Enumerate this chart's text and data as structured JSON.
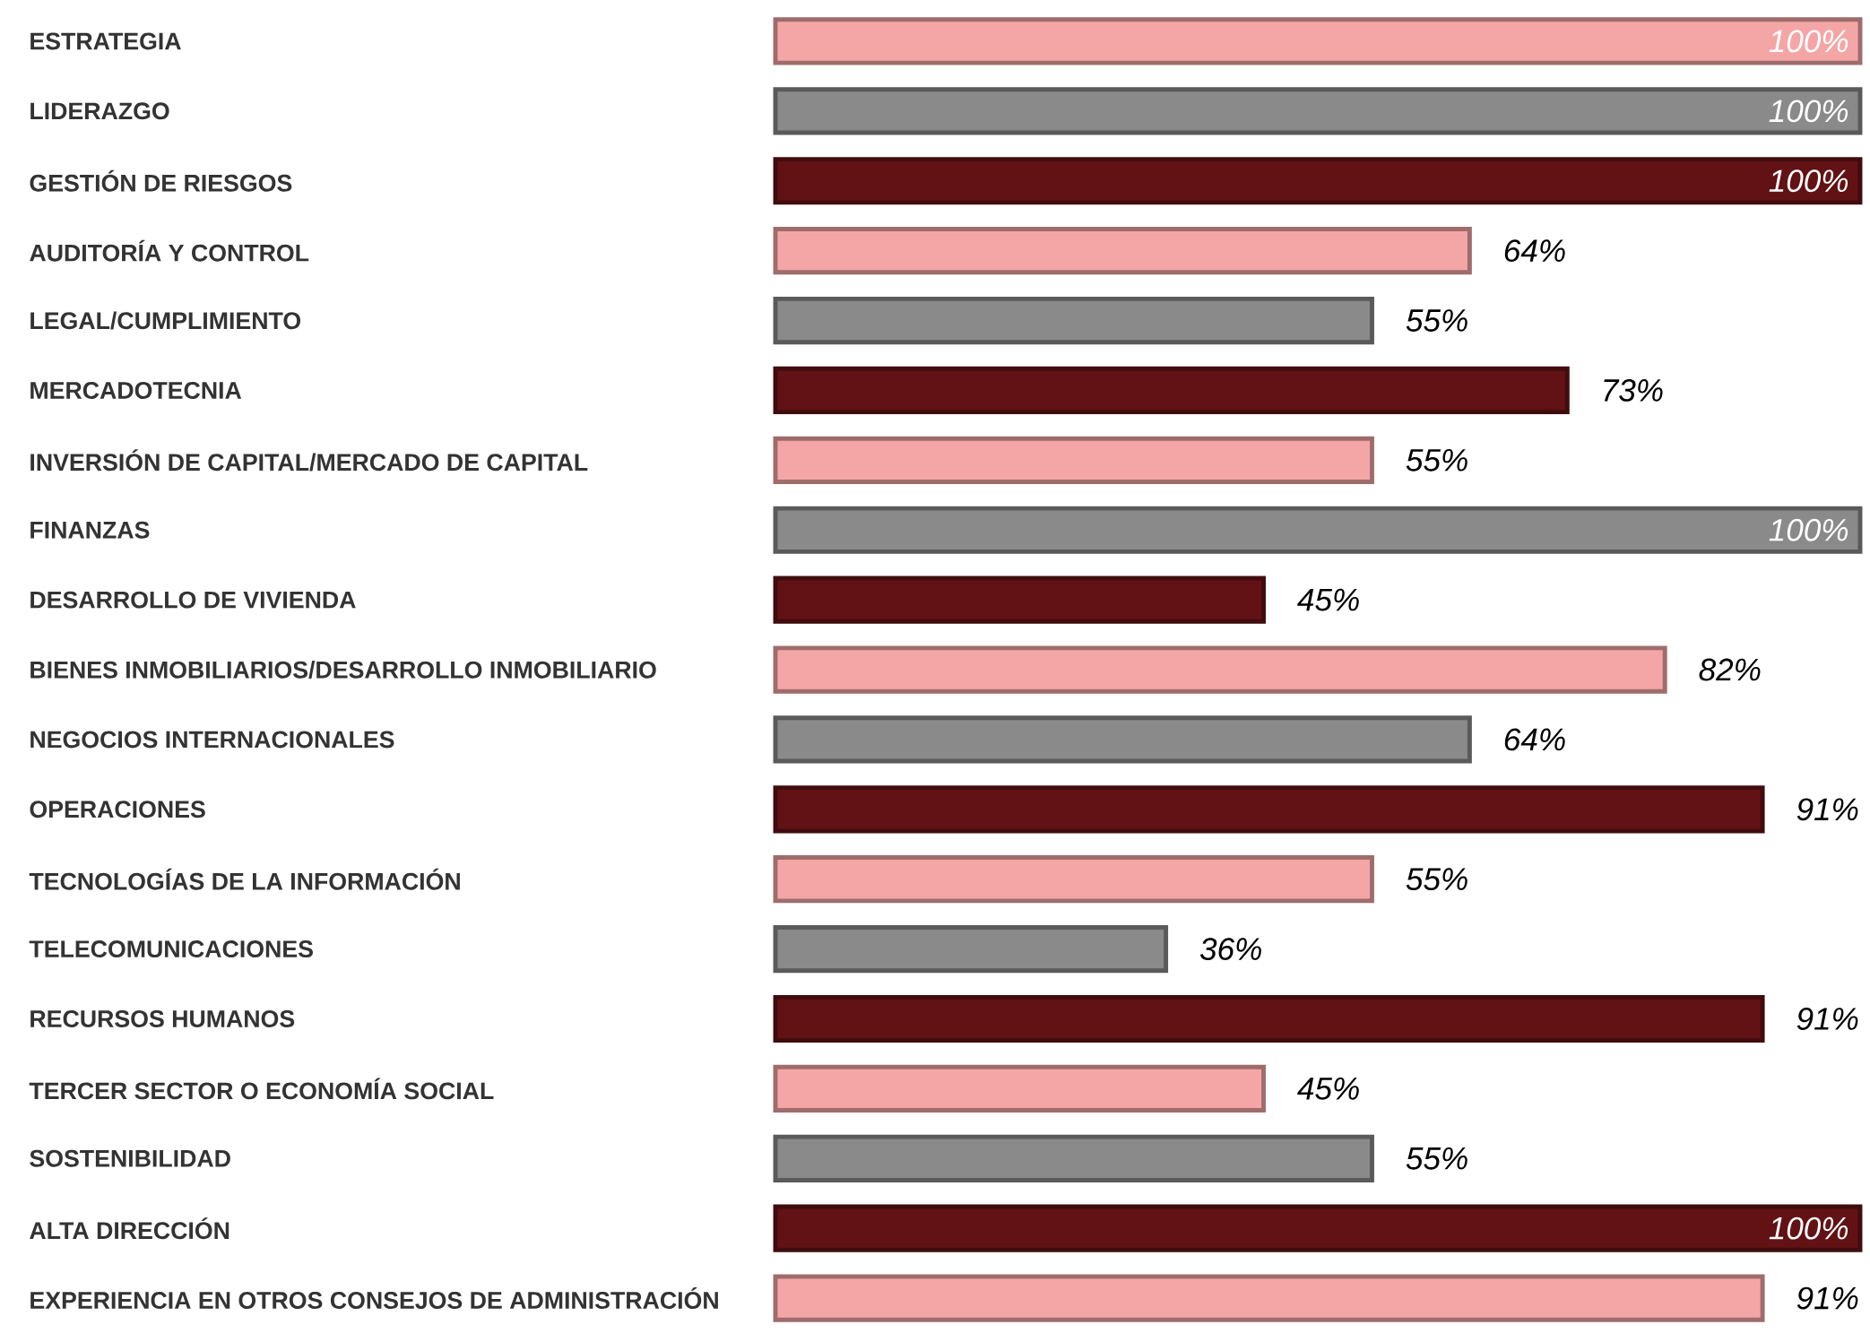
{
  "chart_data": {
    "type": "bar",
    "orientation": "horizontal",
    "categories": [
      "ESTRATEGIA",
      "LIDERAZGO",
      "GESTIÓN DE RIESGOS",
      "AUDITORÍA Y CONTROL",
      "LEGAL/CUMPLIMIENTO",
      "MERCADOTECNIA",
      "INVERSIÓN DE CAPITAL/MERCADO DE CAPITAL",
      "FINANZAS",
      "DESARROLLO DE VIVIENDA",
      "BIENES INMOBILIARIOS/DESARROLLO INMOBILIARIO",
      "NEGOCIOS INTERNACIONALES",
      "OPERACIONES",
      "TECNOLOGÍAS DE LA INFORMACIÓN",
      "TELECOMUNICACIONES",
      "RECURSOS HUMANOS",
      "TERCER SECTOR O ECONOMÍA SOCIAL",
      "SOSTENIBILIDAD",
      "ALTA DIRECCIÓN",
      "EXPERIENCIA EN OTROS CONSEJOS DE ADMINISTRACIÓN"
    ],
    "values": [
      100,
      100,
      100,
      64,
      55,
      73,
      55,
      100,
      45,
      82,
      64,
      91,
      55,
      36,
      91,
      45,
      55,
      100,
      91
    ],
    "value_labels": [
      "100%",
      "100%",
      "100%",
      "64%",
      "55%",
      "73%",
      "55%",
      "100%",
      "45%",
      "82%",
      "64%",
      "91%",
      "55%",
      "36%",
      "91%",
      "45%",
      "55%",
      "100%",
      "91%"
    ],
    "colors": [
      "#f4a6a6",
      "#8a8a8a",
      "#621214",
      "#f4a6a6",
      "#8a8a8a",
      "#621214",
      "#f4a6a6",
      "#8a8a8a",
      "#621214",
      "#f4a6a6",
      "#8a8a8a",
      "#621214",
      "#f4a6a6",
      "#8a8a8a",
      "#621214",
      "#f4a6a6",
      "#8a8a8a",
      "#621214",
      "#f4a6a6"
    ],
    "xlim": [
      0,
      100
    ]
  }
}
